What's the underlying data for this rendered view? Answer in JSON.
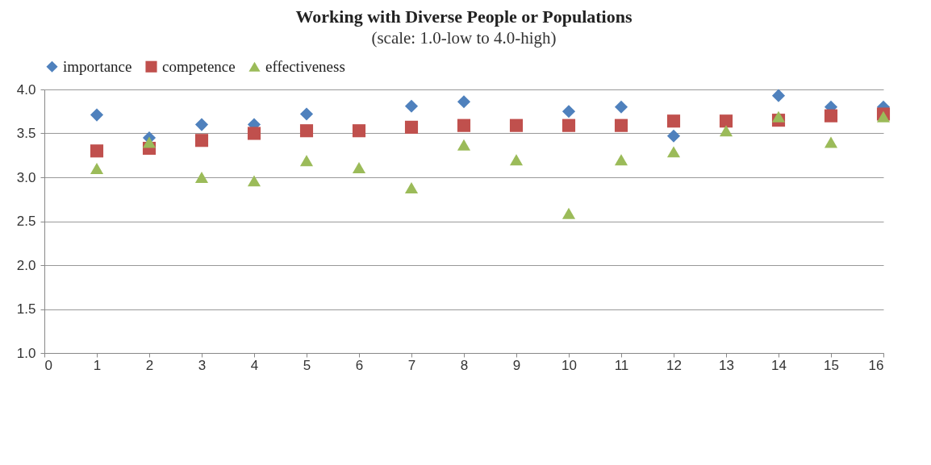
{
  "chart_data": {
    "type": "scatter",
    "title": "Working with Diverse People or Populations",
    "subtitle": "(scale: 1.0-low to 4.0-high)",
    "x": [
      1,
      2,
      3,
      4,
      5,
      6,
      7,
      8,
      9,
      10,
      11,
      12,
      13,
      14,
      15,
      16
    ],
    "series": [
      {
        "name": "importance",
        "color": "#4f81bd",
        "marker": "diamond",
        "values": [
          3.71,
          3.45,
          3.6,
          3.6,
          3.72,
          null,
          3.81,
          3.86,
          null,
          3.75,
          3.8,
          3.47,
          null,
          3.93,
          3.8,
          3.8
        ]
      },
      {
        "name": "competence",
        "color": "#c0504d",
        "marker": "square",
        "values": [
          3.3,
          3.33,
          3.42,
          3.5,
          3.53,
          3.53,
          3.57,
          3.59,
          3.59,
          3.59,
          3.59,
          3.64,
          3.64,
          3.65,
          3.7,
          3.72
        ]
      },
      {
        "name": "effectiveness",
        "color": "#9bbb59",
        "marker": "triangle",
        "values": [
          3.1,
          3.4,
          3.0,
          2.96,
          3.19,
          3.11,
          2.88,
          3.37,
          3.2,
          2.59,
          3.2,
          3.29,
          3.53,
          3.69,
          3.4,
          3.69
        ]
      }
    ],
    "xlim": [
      0,
      16
    ],
    "xticks": [
      0,
      1,
      2,
      3,
      4,
      5,
      6,
      7,
      8,
      9,
      10,
      11,
      12,
      13,
      14,
      15,
      16
    ],
    "ylim": [
      1.0,
      4.0
    ],
    "yticks": [
      {
        "value": 1.0,
        "label": "1.0"
      },
      {
        "value": 1.5,
        "label": "1.5"
      },
      {
        "value": 2.0,
        "label": "2.0"
      },
      {
        "value": 2.5,
        "label": "2.5"
      },
      {
        "value": 3.0,
        "label": "3.0"
      },
      {
        "value": 3.5,
        "label": "3.5"
      },
      {
        "value": 4.0,
        "label": "4.0"
      }
    ],
    "grid": "y",
    "legend": "top"
  }
}
